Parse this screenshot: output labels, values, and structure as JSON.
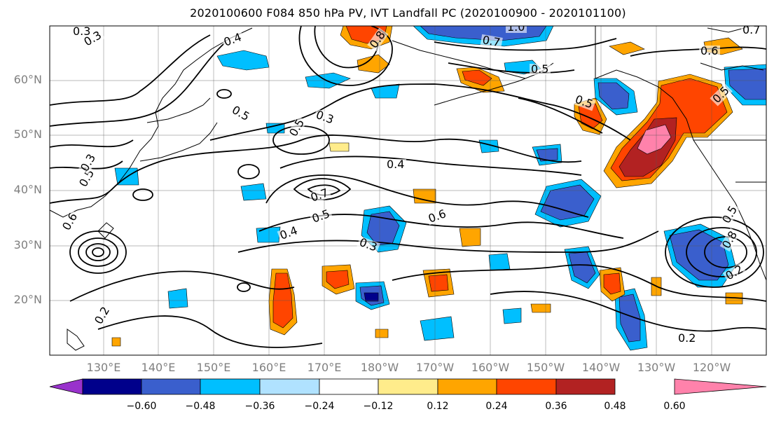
{
  "title": "2020100600 F084 850 hPa PV, IVT Landfall PC (2020100900 - 2020101100)",
  "lat_labels": [
    "60°N",
    "50°N",
    "40°N",
    "30°N",
    "20°N"
  ],
  "lon_labels": [
    "130°E",
    "140°E",
    "150°E",
    "160°E",
    "170°E",
    "180°W",
    "170°W",
    "160°W",
    "150°W",
    "140°W",
    "130°W",
    "120°W"
  ],
  "colorbar": {
    "colors": [
      "#9932cc",
      "#00008b",
      "#3a5fcd",
      "#00bfff",
      "#b0e2ff",
      "#ffffff",
      "#ffec8b",
      "#ffa500",
      "#ff4500",
      "#b22222",
      "#ff82ab"
    ],
    "tick_labels": [
      "−0.60",
      "−0.48",
      "−0.36",
      "−0.24",
      "−0.12",
      "0.12",
      "0.24",
      "0.36",
      "0.48",
      "0.60"
    ]
  },
  "contour_labels": [
    "0.3",
    "0.3",
    "0.4",
    "0.8",
    "1.0",
    "0.7",
    "0.5",
    "0.6",
    "0.7",
    "0.5",
    "0.5",
    "0.3",
    "0.5",
    "0.4",
    "0.7",
    "0.5",
    "0.4",
    "0.6",
    "0.3",
    "0.5",
    "0.3",
    "0.6",
    "0.2",
    "0.2",
    "0.5",
    "0.5",
    "0.8",
    "0.2"
  ]
}
